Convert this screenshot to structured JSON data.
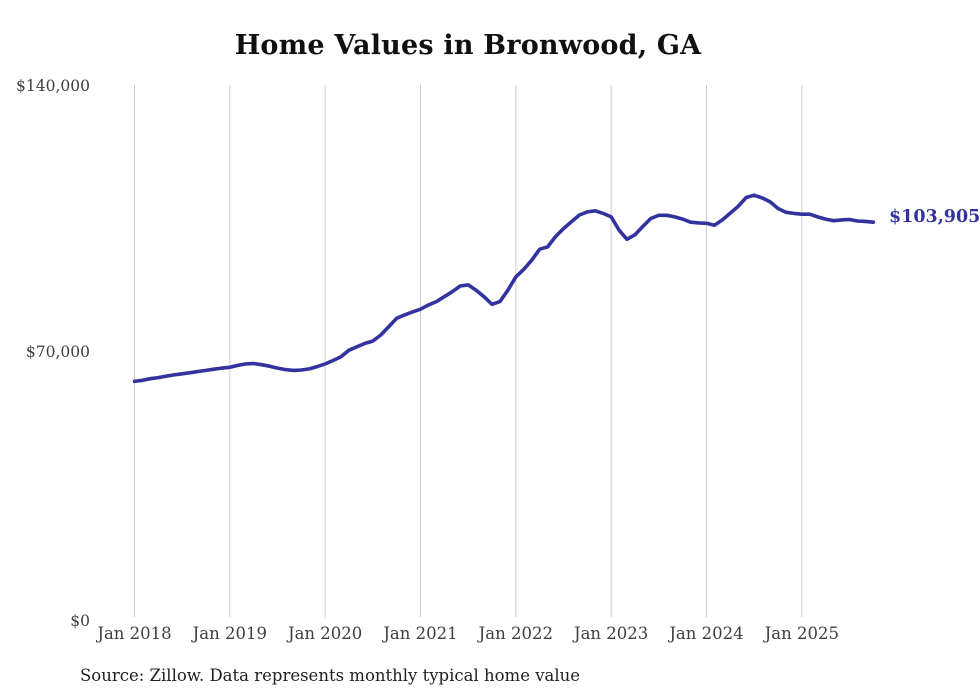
{
  "title": "Home Values in Bronwood, GA",
  "source_note": "Source: Zillow. Data represents monthly typical home value",
  "end_label": "$103,905",
  "colors": {
    "line": "#3333A0",
    "grid": "#cccccc",
    "axis_text": "#3f3f3f",
    "title_text": "#101010",
    "source_text": "#1f1f1f"
  },
  "y_axis": {
    "tick_labels": [
      "$0",
      "$70,000",
      "$140,000"
    ],
    "min": 0,
    "max": 140000
  },
  "x_axis": {
    "tick_labels": [
      "Jan 2018",
      "Jan 2019",
      "Jan 2020",
      "Jan 2021",
      "Jan 2022",
      "Jan 2023",
      "Jan 2024",
      "Jan 2025"
    ]
  },
  "chart_data": {
    "type": "line",
    "title": "Home Values in Bronwood, GA",
    "series_name": "Monthly typical home value (Zillow)",
    "frequency": "monthly",
    "start_month": "Jan 2018",
    "end_month": "Oct 2025",
    "x_tick_labels": [
      "Jan 2018",
      "Jan 2019",
      "Jan 2020",
      "Jan 2021",
      "Jan 2022",
      "Jan 2023",
      "Jan 2024",
      "Jan 2025"
    ],
    "y_tick_labels": [
      "$0",
      "$70,000",
      "$140,000"
    ],
    "ylim": [
      0,
      140000
    ],
    "grid": "vertical-only",
    "legend": "none",
    "last_value_label": "$103,905",
    "last_value": 103905,
    "values": [
      62000,
      62300,
      62700,
      63000,
      63400,
      63700,
      64000,
      64300,
      64600,
      64900,
      65200,
      65500,
      65700,
      66200,
      66600,
      66700,
      66400,
      66000,
      65500,
      65100,
      64900,
      65000,
      65300,
      65900,
      66600,
      67500,
      68500,
      70200,
      71100,
      72000,
      72600,
      74200,
      76400,
      78600,
      79500,
      80300,
      81000,
      82100,
      83000,
      84300,
      85600,
      87100,
      87400,
      86000,
      84300,
      82300,
      83000,
      86000,
      89500,
      91500,
      93900,
      96800,
      97400,
      100100,
      102200,
      104000,
      105800,
      106600,
      106900,
      106200,
      105300,
      101800,
      99400,
      100600,
      102800,
      104900,
      105700,
      105700,
      105300,
      104700,
      103900,
      103700,
      103600,
      103100,
      104500,
      106300,
      108100,
      110400,
      111000,
      110300,
      109300,
      107500,
      106500,
      106200,
      106000,
      106000,
      105300,
      104700,
      104300,
      104500,
      104600,
      104200,
      104100,
      103905
    ]
  }
}
